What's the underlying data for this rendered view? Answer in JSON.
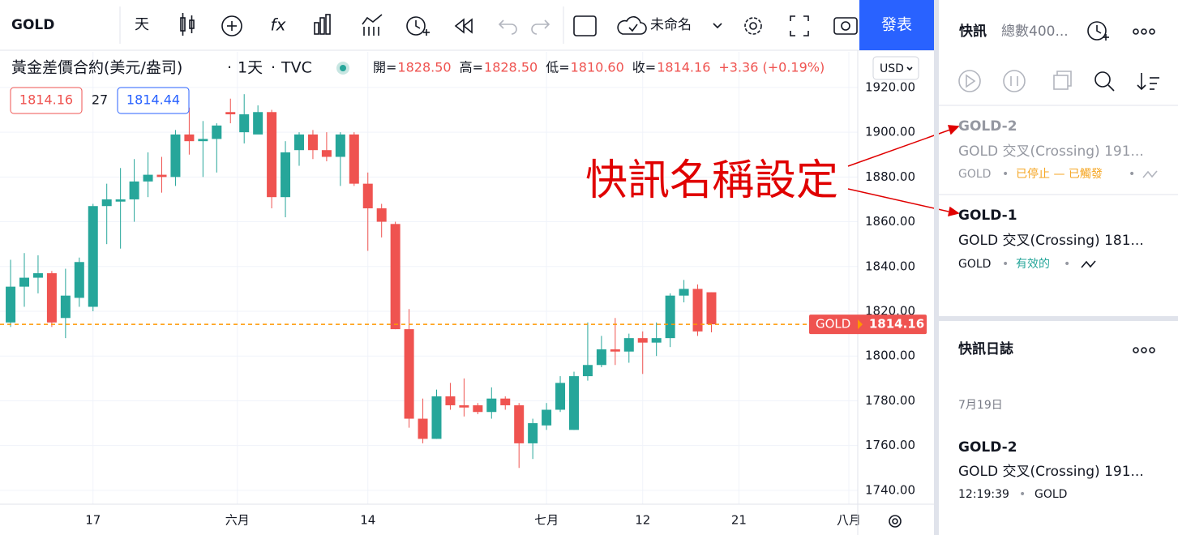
{
  "toolbar": {
    "symbol": "GOLD",
    "interval": "天",
    "layout_name": "未命名",
    "publish": "發表"
  },
  "chart_data": {
    "type": "candlestick",
    "title": "黃金差價合約(美元/盎司)",
    "interval": "1天",
    "source": "TVC",
    "ohlc_legend": [
      {
        "label": "開=",
        "value": "1828.50"
      },
      {
        "label": "高=",
        "value": "1828.50"
      },
      {
        "label": "低=",
        "value": "1810.60"
      },
      {
        "label": "收=",
        "value": "1814.16"
      }
    ],
    "change": "+3.36 (+0.19%)",
    "bid": "1814.16",
    "spread": "27",
    "ask": "1814.44",
    "currency": "USD",
    "up_color": "#26a69a",
    "down_color": "#ef5350",
    "grid": true,
    "x": [
      0,
      1,
      2,
      3,
      4,
      5,
      6,
      7,
      8,
      9,
      10,
      11,
      12,
      13,
      14,
      15,
      16,
      17,
      18,
      19,
      20,
      21,
      22,
      23,
      24,
      25,
      26,
      27,
      28,
      29,
      30,
      31,
      32,
      33,
      34,
      35,
      36,
      37,
      38,
      39,
      40,
      41,
      42,
      43,
      44,
      45,
      46,
      47,
      48,
      49,
      50,
      51
    ],
    "open": [
      1815,
      1831,
      1835,
      1837,
      1817,
      1826,
      1822,
      1867,
      1869,
      1870,
      1878,
      1881,
      1880,
      1899,
      1896,
      1897,
      1909,
      1900,
      1899,
      1909,
      1871,
      1892,
      1899,
      1892,
      1889,
      1899,
      1877,
      1866,
      1859,
      1812,
      1772,
      1763,
      1782,
      1778,
      1778,
      1775,
      1781,
      1778,
      1761,
      1769,
      1776,
      1767,
      1791,
      1796,
      1803,
      1802,
      1808,
      1806,
      1808,
      1827,
      1830,
      1828.5
    ],
    "high": [
      1843,
      1846,
      1845,
      1838,
      1839,
      1844,
      1868,
      1877,
      1884,
      1888,
      1891,
      1889,
      1901,
      1911,
      1905,
      1904,
      1915,
      1917,
      1912,
      1910,
      1896,
      1900,
      1901,
      1900,
      1900,
      1900,
      1882,
      1868,
      1860,
      1821,
      1781,
      1785,
      1788,
      1790,
      1779,
      1786,
      1782,
      1779,
      1772,
      1779,
      1791,
      1793,
      1815,
      1809,
      1817,
      1810,
      1811,
      1815,
      1828,
      1834,
      1832,
      1828.5
    ],
    "low": [
      1813,
      1822,
      1828,
      1813,
      1808,
      1822,
      1820,
      1850,
      1848,
      1860,
      1871,
      1873,
      1876,
      1890,
      1880,
      1882,
      1904,
      1895,
      1900,
      1866,
      1862,
      1885,
      1888,
      1887,
      1876,
      1876,
      1847,
      1853,
      1812,
      1768,
      1761,
      1763,
      1776,
      1773,
      1774,
      1772,
      1776,
      1750,
      1754,
      1767,
      1775,
      1767,
      1789,
      1795,
      1796,
      1797,
      1792,
      1800,
      1804,
      1824,
      1809,
      1810.6
    ],
    "close": [
      1831,
      1835,
      1837,
      1815,
      1827,
      1842,
      1867,
      1870,
      1870,
      1878,
      1881,
      1880,
      1899,
      1896,
      1897,
      1903,
      1908,
      1908,
      1909,
      1871,
      1891,
      1899,
      1892,
      1889,
      1899,
      1877,
      1866,
      1860,
      1812,
      1772,
      1763,
      1782,
      1778,
      1777,
      1775,
      1781,
      1778,
      1761,
      1770,
      1776,
      1788,
      1791,
      1796,
      1803,
      1802,
      1808,
      1806,
      1808,
      1827,
      1830,
      1811,
      1814.16
    ],
    "xlim": [
      -0.77,
      61.65
    ],
    "xticks": [
      {
        "value": 6,
        "label": "17"
      },
      {
        "value": 16.5,
        "label": "六月"
      },
      {
        "value": 26,
        "label": "14"
      },
      {
        "value": 39,
        "label": "七月"
      },
      {
        "value": 46,
        "label": "12"
      },
      {
        "value": 53,
        "label": "21"
      },
      {
        "value": 61,
        "label": "八月"
      }
    ],
    "ylim": [
      1733.8,
      1935.9
    ],
    "yticks": [
      {
        "value": 1740,
        "label": "1740.00"
      },
      {
        "value": 1760,
        "label": "1760.00"
      },
      {
        "value": 1780,
        "label": "1780.00"
      },
      {
        "value": 1800,
        "label": "1800.00"
      },
      {
        "value": 1820,
        "label": "1820.00"
      },
      {
        "value": 1840,
        "label": "1840.00"
      },
      {
        "value": 1860,
        "label": "1860.00"
      },
      {
        "value": 1880,
        "label": "1880.00"
      },
      {
        "value": 1900,
        "label": "1900.00"
      },
      {
        "value": 1920,
        "label": "1920.00"
      }
    ],
    "last_price": {
      "label": "GOLD",
      "value": 1814.16,
      "color": "#ff9800"
    }
  },
  "annotation": "快訊名稱設定",
  "alerts_panel": {
    "title": "快訊",
    "total": "總數400...",
    "alerts": [
      {
        "name": "GOLD-2",
        "condition": "GOLD 交叉(Crossing) 191...",
        "symbol": "GOLD",
        "status": "已停止 — 已觸發"
      },
      {
        "name": "GOLD-1",
        "condition": "GOLD 交叉(Crossing) 181...",
        "symbol": "GOLD",
        "status": "有效的"
      }
    ]
  },
  "log_panel": {
    "title": "快訊日誌",
    "date": "7月19日",
    "entries": [
      {
        "name": "GOLD-2",
        "condition": "GOLD 交叉(Crossing) 191...",
        "time": "12:19:39",
        "symbol": "GOLD"
      }
    ]
  }
}
